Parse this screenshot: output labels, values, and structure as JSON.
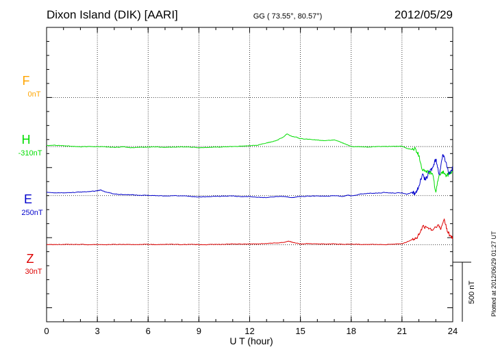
{
  "header": {
    "station": "Dixon Island (DIK)  [AARI]",
    "coords": "GG ( 73.55°,  80.57°)",
    "date": "2012/05/29"
  },
  "plotted_note": "Plotted at 2012/06/29 01:27 UT",
  "colors": {
    "F": "#ffa500",
    "H": "#00dd00",
    "E": "#0000cc",
    "Z": "#dd0000",
    "grid": "#000000"
  },
  "chart_data": {
    "type": "line",
    "title": "Dixon Island (DIK)  [AARI]",
    "xlabel": "U T (hour)",
    "xlim": [
      0,
      24
    ],
    "xticks": [
      "0",
      "3",
      "6",
      "9",
      "12",
      "15",
      "18",
      "21",
      "24"
    ],
    "y_units": "nT",
    "ylim": [
      -1600,
      500
    ],
    "scale_bar": {
      "label": "500 nT",
      "value_nT": 500
    },
    "series": [
      {
        "name": "F",
        "offset_label": "0nT",
        "baseline_nT": 0,
        "x": [],
        "values": []
      },
      {
        "name": "H",
        "offset_label": "-310nT",
        "baseline_nT": -350,
        "x": [
          0,
          0.5,
          1,
          1.5,
          2,
          2.5,
          3,
          3.5,
          4,
          4.5,
          5,
          5.5,
          6,
          6.5,
          7,
          7.5,
          8,
          8.5,
          9,
          9.5,
          10,
          10.5,
          11,
          11.5,
          12,
          12.5,
          13,
          13.3,
          13.6,
          14,
          14.2,
          14.5,
          14.8,
          15,
          15.5,
          16,
          16.5,
          17,
          17.3,
          17.6,
          18,
          18.5,
          19,
          19.5,
          20,
          20.5,
          21,
          21.3,
          21.6,
          21.8,
          22,
          22.2,
          22.4,
          22.6,
          22.8,
          23,
          23.2,
          23.4,
          23.6,
          23.8,
          24
        ],
        "values": [
          8,
          10,
          6,
          2,
          -2,
          0,
          0,
          -2,
          -6,
          -2,
          -8,
          -6,
          -4,
          -2,
          -6,
          -4,
          -2,
          -4,
          -8,
          -6,
          -4,
          -2,
          0,
          2,
          6,
          10,
          26,
          34,
          44,
          68,
          90,
          72,
          66,
          56,
          52,
          46,
          42,
          48,
          36,
          20,
          0,
          -2,
          -4,
          0,
          0,
          2,
          2,
          -14,
          -20,
          -16,
          -64,
          -164,
          -176,
          -184,
          -192,
          -326,
          -200,
          -176,
          -216,
          -190,
          -180
        ]
      },
      {
        "name": "E",
        "offset_label": "250nT",
        "baseline_nT": -700,
        "x": [
          0,
          0.5,
          1,
          1.5,
          2,
          2.5,
          3,
          3.2,
          3.5,
          4,
          4.5,
          5,
          5.5,
          6,
          6.5,
          7,
          7.5,
          8,
          8.5,
          9,
          9.5,
          10,
          10.5,
          11,
          11.5,
          12,
          12.5,
          13,
          13.5,
          14,
          14.5,
          15,
          15.5,
          16,
          16.5,
          17,
          17.5,
          17.8,
          18,
          18.5,
          19,
          19.5,
          20,
          20.5,
          21,
          21.3,
          21.6,
          21.8,
          22,
          22.2,
          22.4,
          22.6,
          22.8,
          23,
          23.2,
          23.4,
          23.6,
          23.8,
          24
        ],
        "values": [
          24,
          20,
          20,
          22,
          26,
          28,
          34,
          40,
          26,
          12,
          6,
          6,
          2,
          2,
          0,
          -2,
          0,
          -2,
          -6,
          -10,
          -8,
          -6,
          -4,
          -2,
          -8,
          -6,
          -12,
          -14,
          -8,
          -6,
          -14,
          -6,
          -4,
          -2,
          -4,
          0,
          -6,
          4,
          -2,
          10,
          16,
          18,
          22,
          18,
          20,
          10,
          24,
          16,
          70,
          148,
          110,
          170,
          196,
          260,
          150,
          290,
          240,
          152,
          200
        ]
      },
      {
        "name": "Z",
        "offset_label": "30nT",
        "baseline_nT": -1050,
        "x": [
          0,
          0.5,
          1,
          1.5,
          2,
          2.5,
          3,
          3.5,
          4,
          4.5,
          5,
          5.5,
          6,
          6.5,
          7,
          7.5,
          8,
          8.5,
          9,
          9.5,
          10,
          10.5,
          11,
          11.5,
          12,
          12.5,
          13,
          13.5,
          14,
          14.3,
          14.6,
          15,
          15.5,
          16,
          16.5,
          17,
          17.5,
          18,
          18.5,
          19,
          19.5,
          20,
          20.5,
          21,
          21.3,
          21.6,
          21.9,
          22.2,
          22.5,
          22.8,
          23.1,
          23.3,
          23.5,
          23.7,
          23.9,
          24
        ],
        "values": [
          0,
          0,
          2,
          2,
          2,
          0,
          2,
          0,
          2,
          2,
          0,
          2,
          2,
          0,
          2,
          2,
          0,
          2,
          0,
          0,
          2,
          2,
          6,
          4,
          6,
          6,
          8,
          12,
          16,
          26,
          14,
          6,
          8,
          6,
          4,
          6,
          2,
          4,
          2,
          2,
          2,
          0,
          4,
          6,
          20,
          36,
          44,
          126,
          122,
          102,
          140,
          110,
          184,
          90,
          56,
          46
        ]
      }
    ]
  },
  "y_labels": [
    {
      "name": "F",
      "offset": "0nT"
    },
    {
      "name": "H",
      "offset": "-310nT"
    },
    {
      "name": "E",
      "offset": "250nT"
    },
    {
      "name": "Z",
      "offset": "30nT"
    }
  ]
}
